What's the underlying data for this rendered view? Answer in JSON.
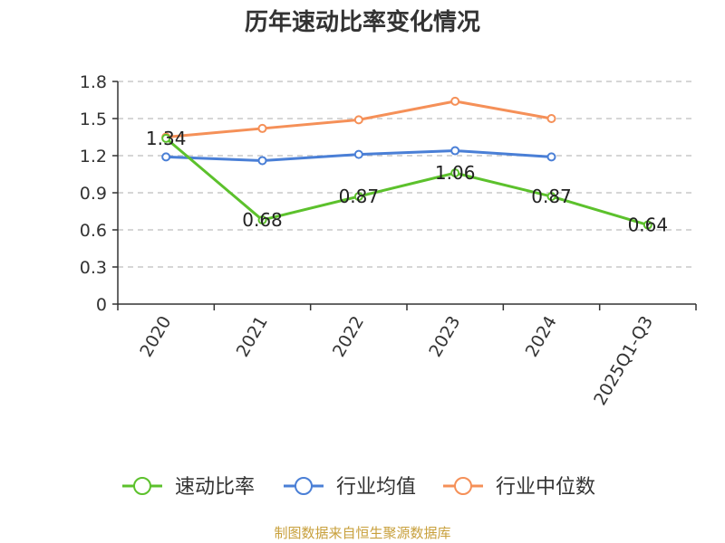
{
  "chart_data": {
    "type": "line",
    "title": "历年速动比率变化情况",
    "categories": [
      "2020",
      "2021",
      "2022",
      "2023",
      "2024",
      "2025Q1-Q3"
    ],
    "ylim": [
      0,
      1.8
    ],
    "yticks": [
      "0",
      "0.3",
      "0.6",
      "0.9",
      "1.2",
      "1.5",
      "1.8"
    ],
    "grid": true,
    "legend_position": "bottom",
    "series": [
      {
        "name": "速动比率",
        "color": "#5cc12c",
        "values": [
          1.34,
          0.68,
          0.87,
          1.06,
          0.87,
          0.64
        ],
        "labels": [
          "1.34",
          "0.68",
          "0.87",
          "1.06",
          "0.87",
          "0.64"
        ]
      },
      {
        "name": "行业均值",
        "color": "#4a7fd6",
        "values": [
          1.19,
          1.16,
          1.21,
          1.24,
          1.19,
          null
        ]
      },
      {
        "name": "行业中位数",
        "color": "#f59058",
        "values": [
          1.35,
          1.42,
          1.49,
          1.64,
          1.5,
          null
        ]
      }
    ]
  },
  "footer": {
    "source": "制图数据来自恒生聚源数据库"
  }
}
